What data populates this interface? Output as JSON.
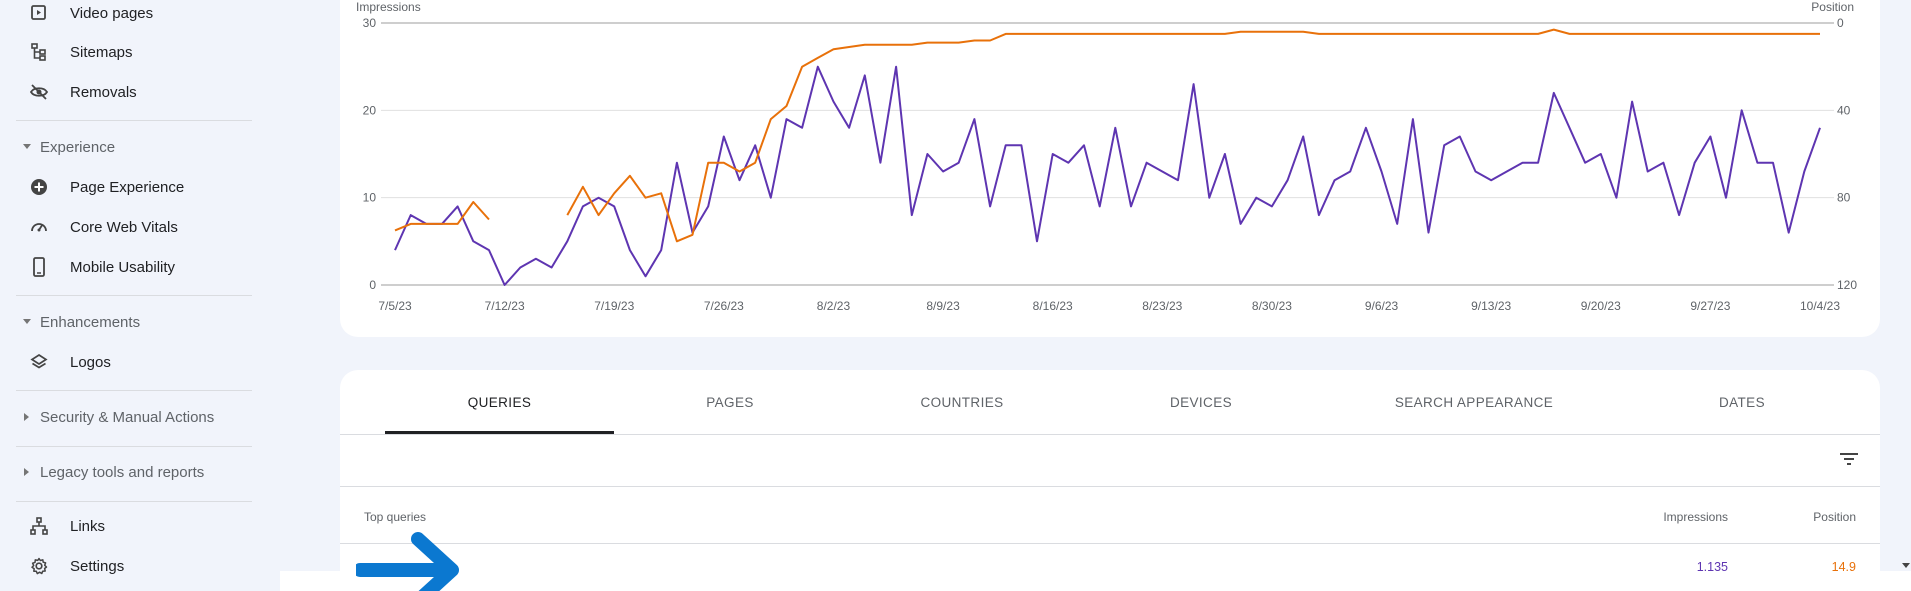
{
  "sidebar": {
    "items": [
      {
        "label": "Video pages",
        "icon": "video-pages-icon"
      },
      {
        "label": "Sitemaps",
        "icon": "sitemap-icon"
      },
      {
        "label": "Removals",
        "icon": "removals-eye-off-icon"
      }
    ],
    "experience": {
      "header": "Experience",
      "items": [
        {
          "label": "Page Experience",
          "icon": "page-experience-icon"
        },
        {
          "label": "Core Web Vitals",
          "icon": "gauge-icon"
        },
        {
          "label": "Mobile Usability",
          "icon": "mobile-icon"
        }
      ]
    },
    "enhancements": {
      "header": "Enhancements",
      "items": [
        {
          "label": "Logos",
          "icon": "layers-icon"
        }
      ]
    },
    "security": {
      "header": "Security & Manual Actions"
    },
    "legacy": {
      "header": "Legacy tools and reports"
    },
    "bottom_items": [
      {
        "label": "Links",
        "icon": "links-icon"
      },
      {
        "label": "Settings",
        "icon": "gear-icon"
      }
    ]
  },
  "colors": {
    "impressions": "#5e35b1",
    "position": "#e8710a",
    "grid": "#e0e0e0",
    "arrow": "#0b78d0"
  },
  "chart_data": {
    "type": "line",
    "left_axis_label": "Impressions",
    "right_axis_label": "Position",
    "left_ylim": [
      0,
      30
    ],
    "right_ylim": [
      0,
      120
    ],
    "right_axis_inverted": true,
    "left_ticks": [
      "0",
      "10",
      "20",
      "30"
    ],
    "right_ticks": [
      "0",
      "40",
      "80",
      "120"
    ],
    "x_ticks": [
      "7/5/23",
      "7/12/23",
      "7/19/23",
      "7/26/23",
      "8/2/23",
      "8/9/23",
      "8/16/23",
      "8/23/23",
      "8/30/23",
      "9/6/23",
      "9/13/23",
      "9/20/23",
      "9/27/23",
      "10/4/23"
    ],
    "x_start": "7/5/23",
    "x_end": "10/4/23",
    "grid": true,
    "series": [
      {
        "name": "Impressions",
        "axis": "left",
        "values": [
          4,
          8,
          7,
          7,
          9,
          5,
          4,
          0,
          2,
          3,
          2,
          5,
          9,
          10,
          9,
          4,
          1,
          4,
          14,
          6,
          9,
          17,
          12,
          16,
          10,
          19,
          18,
          25,
          21,
          18,
          24,
          14,
          25,
          8,
          15,
          13,
          14,
          19,
          9,
          16,
          16,
          5,
          15,
          14,
          16,
          9,
          18,
          9,
          14,
          13,
          12,
          23,
          10,
          15,
          7,
          10,
          9,
          12,
          17,
          8,
          12,
          13,
          18,
          13,
          7,
          19,
          6,
          16,
          17,
          13,
          12,
          13,
          14,
          14,
          22,
          18,
          14,
          15,
          10,
          21,
          13,
          14,
          8,
          14,
          17,
          10,
          20,
          14,
          14,
          6,
          13,
          18
        ]
      },
      {
        "name": "Position",
        "axis": "right",
        "values": [
          95,
          92,
          92,
          92,
          92,
          82,
          90,
          null,
          null,
          null,
          null,
          88,
          75,
          88,
          78,
          70,
          80,
          78,
          100,
          97,
          64,
          64,
          68,
          64,
          44,
          38,
          20,
          16,
          12,
          11,
          10,
          10,
          10,
          10,
          9,
          9,
          9,
          8,
          8,
          5,
          5,
          5,
          5,
          5,
          5,
          5,
          5,
          5,
          5,
          5,
          5,
          5,
          5,
          5,
          4,
          4,
          4,
          4,
          4,
          5,
          5,
          5,
          5,
          5,
          5,
          5,
          5,
          5,
          5,
          5,
          5,
          5,
          5,
          5,
          3,
          5,
          5,
          5,
          5,
          5,
          5,
          5,
          5,
          5,
          5,
          5,
          5,
          5,
          5,
          5,
          5,
          5
        ]
      }
    ],
    "position_gaps": [
      [
        7,
        10
      ]
    ]
  },
  "tabs": [
    {
      "label": "QUERIES",
      "active": true
    },
    {
      "label": "PAGES",
      "active": false
    },
    {
      "label": "COUNTRIES",
      "active": false
    },
    {
      "label": "DEVICES",
      "active": false
    },
    {
      "label": "SEARCH APPEARANCE",
      "active": false
    },
    {
      "label": "DATES",
      "active": false
    }
  ],
  "table": {
    "col_query": "Top queries",
    "col_impressions": "Impressions",
    "col_position": "Position",
    "rows": [
      {
        "query": "",
        "impressions": "1.135",
        "position": "14.9"
      }
    ]
  },
  "filter_icon": "filter-lines-icon",
  "overlay_icon": "arrow-right-icon"
}
